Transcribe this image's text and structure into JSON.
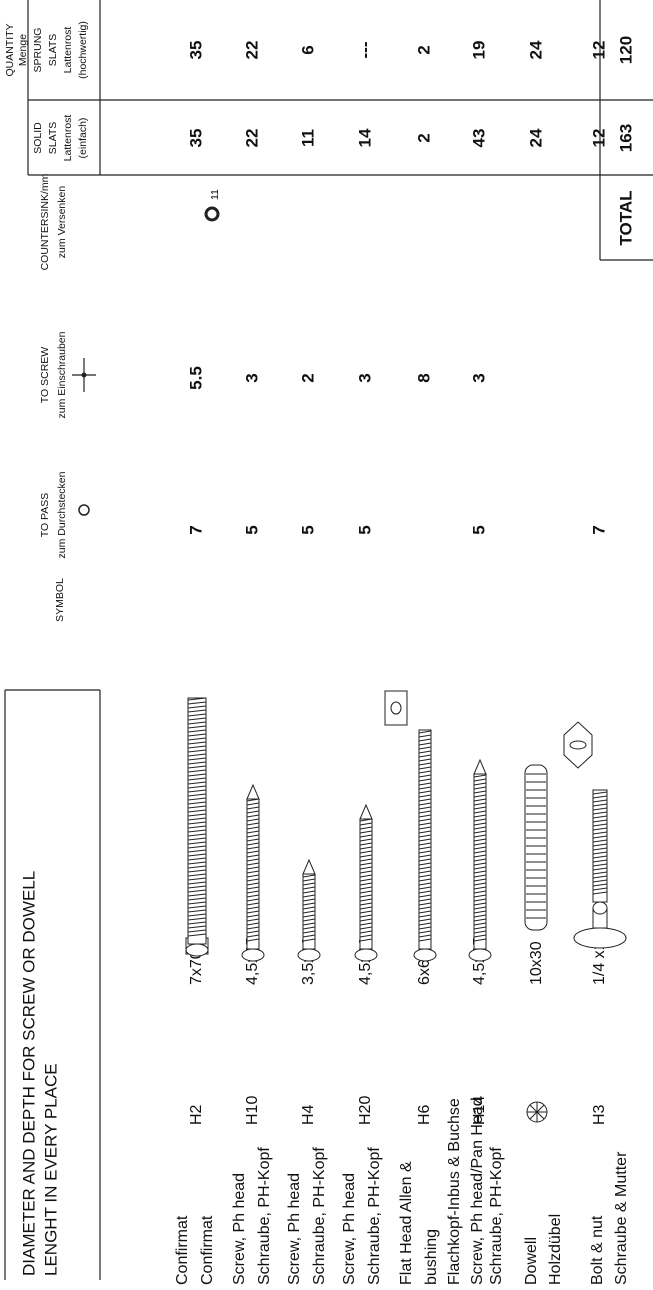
{
  "header": {
    "title_lines": [
      "DIAMETER AND  DEPTH FOR  SCREW OR DOWELL",
      "LENGHT IN EVERY PLACE"
    ]
  },
  "columns": {
    "symbol": "SYMBOL",
    "to_pass": [
      "TO PASS",
      "zum Durchstecken"
    ],
    "to_screw": [
      "TO SCREW",
      "zum Einschrauben"
    ],
    "countersink": [
      "COUNTERSINK/mm",
      "zum Versenken"
    ],
    "countersink_size": "11",
    "quantity": [
      "QUANTITY",
      "Menge"
    ],
    "solid": [
      "SOLID",
      "SLATS",
      "Lattenrost",
      "(einfach)"
    ],
    "sprung": [
      "SPRUNG",
      "SLATS",
      "Lattenrost",
      "(hochwertig)"
    ]
  },
  "rows": [
    {
      "name": [
        "Confirmat",
        "Confirmat"
      ],
      "code": "H2",
      "size": "7x70",
      "pass": "7",
      "screw": "5.5",
      "solid": "35",
      "sprung": "35"
    },
    {
      "name": [
        "Screw, Ph head",
        "Schraube, PH-Kopf"
      ],
      "code": "H10",
      "size": "4,5x45",
      "pass": "5",
      "screw": "3",
      "solid": "22",
      "sprung": "22"
    },
    {
      "name": [
        "Screw, Ph head",
        "Schraube, PH-Kopf"
      ],
      "code": "H4",
      "size": "3,5x16",
      "pass": "5",
      "screw": "2",
      "solid": "11",
      "sprung": "6"
    },
    {
      "name": [
        "Screw, Ph head",
        "Schraube, PH-Kopf"
      ],
      "code": "H20",
      "size": "4,5x30",
      "pass": "5",
      "screw": "3",
      "solid": "14",
      "sprung": "---"
    },
    {
      "name": [
        "Flat Head Allen &",
        "bushing",
        "Flachkopf-Inbus & Buchse"
      ],
      "code": "H6",
      "size": "6x60",
      "screw": "8",
      "solid": "2",
      "sprung": "2"
    },
    {
      "name": [
        "Screw, Ph head/Pan Head",
        "Schraube, PH-Kopf"
      ],
      "code": "H14",
      "size": "4,5x35",
      "pass": "5",
      "screw": "3",
      "solid": "43",
      "sprung": "19"
    },
    {
      "name": [
        "Dowell",
        "Holzdübel"
      ],
      "size": "10x30",
      "solid": "24",
      "sprung": "24"
    },
    {
      "name": [
        "Bolt & nut",
        "Schraube & Mutter"
      ],
      "code": "H3",
      "size": "1/4 x1 1/4",
      "pass": "7",
      "solid": "12",
      "sprung": "12"
    }
  ],
  "total": {
    "label": "TOTAL",
    "solid": "163",
    "sprung": "120"
  }
}
